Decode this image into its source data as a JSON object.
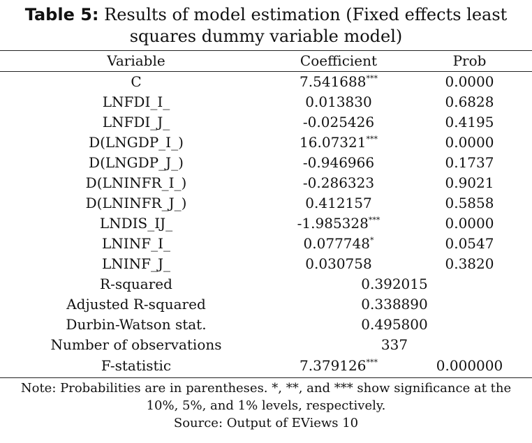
{
  "title": {
    "label": "Table 5:",
    "line1": "Results of model estimation (Fixed effects least",
    "line2": "squares dummy variable model)"
  },
  "table": {
    "headers": [
      "Variable",
      "Coefficient",
      "Prob"
    ],
    "rows": [
      {
        "variable": "C",
        "coef": "7.541688",
        "sig": "***",
        "prob": "0.0000"
      },
      {
        "variable": "LNFDI_I_",
        "coef": "0.013830",
        "sig": "",
        "prob": "0.6828"
      },
      {
        "variable": "LNFDI_J_",
        "coef": "-0.025426",
        "sig": "",
        "prob": "0.4195"
      },
      {
        "variable": "D(LNGDP_I_)",
        "coef": "16.07321",
        "sig": "***",
        "prob": "0.0000"
      },
      {
        "variable": "D(LNGDP_J_)",
        "coef": "-0.946966",
        "sig": "",
        "prob": "0.1737"
      },
      {
        "variable": "D(LNINFR_I_)",
        "coef": "-0.286323",
        "sig": "",
        "prob": "0.9021"
      },
      {
        "variable": "D(LNINFR_J_)",
        "coef": "0.412157",
        "sig": "",
        "prob": "0.5858"
      },
      {
        "variable": "LNDIS_IJ_",
        "coef": "-1.985328",
        "sig": "***",
        "prob": "0.0000"
      },
      {
        "variable": "LNINF_I_",
        "coef": "0.077748",
        "sig": "*",
        "prob": "0.0547"
      },
      {
        "variable": "LNINF_J_",
        "coef": "0.030758",
        "sig": "",
        "prob": "0.3820"
      }
    ],
    "stats": [
      {
        "label": "R-squared",
        "value": "0.392015"
      },
      {
        "label": "Adjusted R-squared",
        "value": "0.338890"
      },
      {
        "label": "Durbin-Watson stat.",
        "value": "0.495800"
      },
      {
        "label": "Number of observations",
        "value": "337"
      }
    ],
    "fstat": {
      "label": "F-statistic",
      "value": "7.379126",
      "sig": "***",
      "prob": "0.000000"
    }
  },
  "notes": {
    "line1": "Note: Probabilities are in parentheses. *, **, and *** show significance at the",
    "line2": "10%, 5%, and 1% levels, respectively.",
    "source": "Source: Output of EViews 10"
  }
}
